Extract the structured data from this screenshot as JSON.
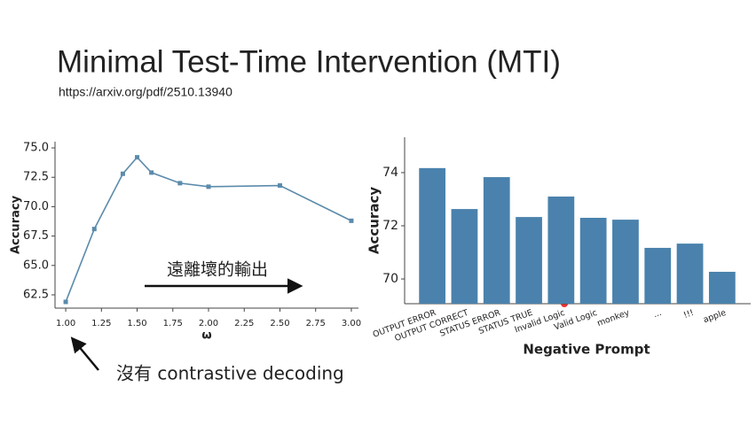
{
  "slide": {
    "title": "Minimal Test-Time Intervention (MTI)",
    "url": "https://arxiv.org/pdf/2510.13940",
    "annotations": [
      "遠離壞的輸出",
      "沒有 contrastive decoding"
    ]
  },
  "chart_data": [
    {
      "type": "line",
      "x_label": "ω",
      "y_label": "Accuracy",
      "color": "#5b8bab",
      "x": [
        1.0,
        1.2,
        1.4,
        1.5,
        1.6,
        1.8,
        2.0,
        2.5,
        3.0
      ],
      "values": [
        61.9,
        68.1,
        72.8,
        74.2,
        72.9,
        72.0,
        71.7,
        71.8,
        68.8
      ],
      "xlim": [
        0.925,
        3.05
      ],
      "xticks": [
        {
          "value": 1,
          "label": "1.00"
        },
        {
          "value": 1.25,
          "label": "1.25"
        },
        {
          "value": 1.5,
          "label": "1.50"
        },
        {
          "value": 1.75,
          "label": "1.75"
        },
        {
          "value": 2,
          "label": "2.00"
        },
        {
          "value": 2.25,
          "label": "2.25"
        },
        {
          "value": 2.5,
          "label": "2.50"
        },
        {
          "value": 2.75,
          "label": "2.75"
        },
        {
          "value": 3,
          "label": "3.00"
        }
      ],
      "ylim": [
        61.37,
        75.53
      ],
      "yticks": [
        62.5,
        {
          "value": 65,
          "label": "65.0"
        },
        67.5,
        {
          "value": 70,
          "label": "70.0"
        },
        72.5,
        {
          "value": 75,
          "label": "75.0"
        }
      ],
      "grid": false
    },
    {
      "type": "bar",
      "x_label": "Negative Prompt",
      "y_label": "Accuracy",
      "color": "#4a82ad",
      "categories": [
        "OUTPUT ERROR",
        "OUTPUT CORRECT",
        "STATUS ERROR",
        "STATUS TRUE",
        "Invalid Logic",
        "Valid Logic",
        "monkey",
        "...",
        "!!!",
        "apple"
      ],
      "values": [
        74.17,
        72.63,
        73.83,
        72.33,
        73.1,
        72.3,
        72.23,
        71.17,
        71.33,
        70.27
      ],
      "ylim": [
        69.07,
        75.33
      ],
      "yticks": [
        70,
        72,
        74
      ],
      "grid": false
    }
  ]
}
